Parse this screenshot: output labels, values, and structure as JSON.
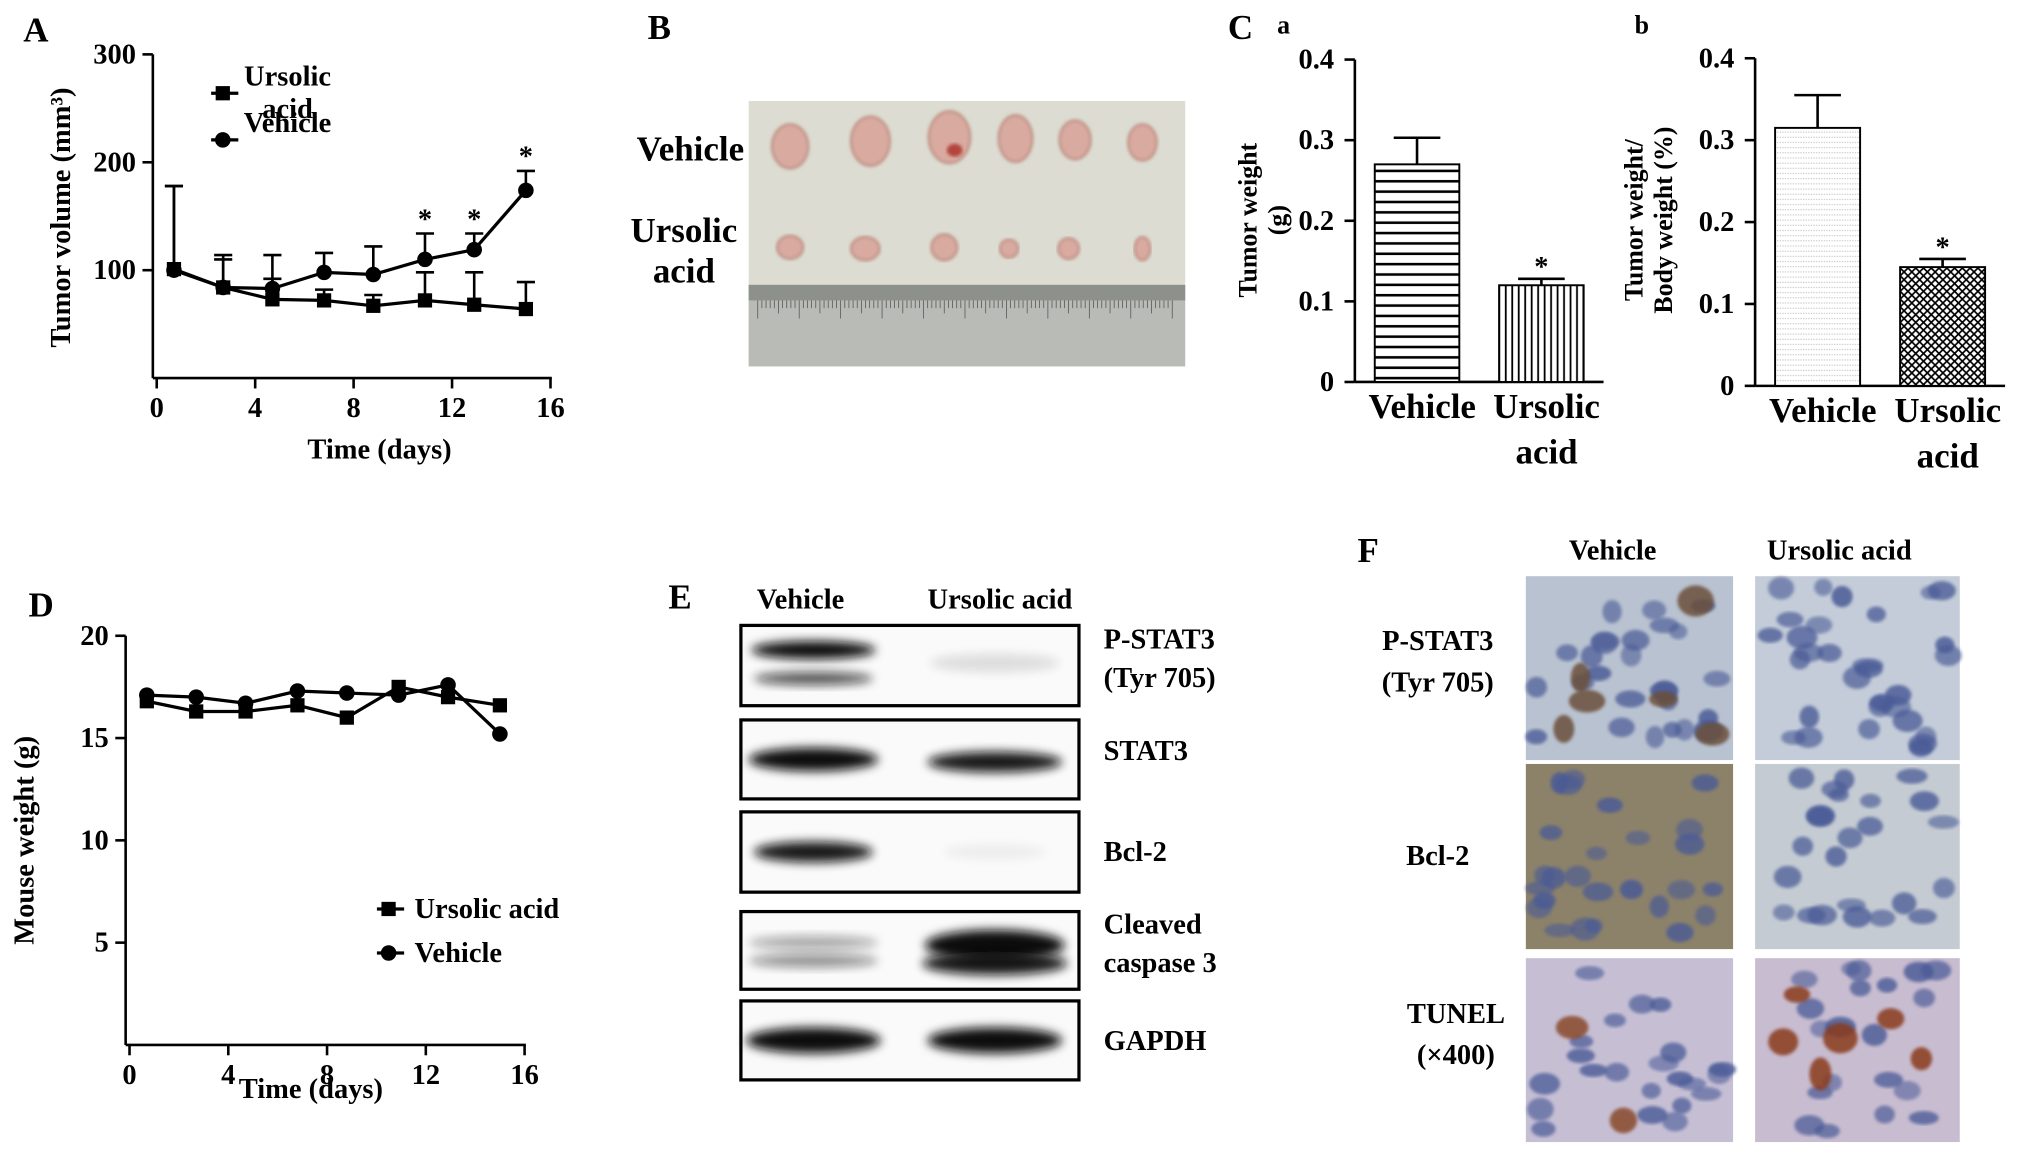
{
  "chart_data": [
    {
      "type": "line",
      "panel_label": "A",
      "x_label": "Time (days)",
      "y_label": "Tumor volume (mm³)",
      "x": [
        0.7,
        2.7,
        4.7,
        6.8,
        8.8,
        10.9,
        12.9,
        15
      ],
      "xlim": [
        0,
        16
      ],
      "xticks": [
        0,
        4,
        8,
        12,
        16
      ],
      "ylim": [
        0,
        300
      ],
      "yticks": [
        100,
        200,
        300
      ],
      "legend": "upper left",
      "series": [
        {
          "name": "Ursolic acid",
          "color": "#000000",
          "marker": "square",
          "values": [
            101,
            84,
            73,
            72,
            67,
            72,
            68,
            64
          ],
          "errors": [
            77,
            26,
            19,
            10,
            10,
            26,
            30,
            25
          ]
        },
        {
          "name": "Vehicle",
          "color": "#000000",
          "marker": "circle",
          "values": [
            100,
            84,
            83,
            98,
            96,
            110,
            119,
            174
          ],
          "errors": [
            78,
            30,
            31,
            18,
            26,
            24,
            15,
            18
          ],
          "significance": [
            null,
            null,
            null,
            null,
            null,
            "*",
            "*",
            "*"
          ]
        }
      ]
    },
    {
      "type": "bar",
      "panel_label": "C",
      "sub_label": "a",
      "y_label": "Tumor weight (g)",
      "categories": [
        "Vehicle",
        "Ursolic acid"
      ],
      "values": [
        0.27,
        0.12
      ],
      "errors": [
        0.033,
        0.008
      ],
      "significance": [
        null,
        "*"
      ],
      "color": "#000000",
      "bar_patterns": [
        "horizontal",
        "vertical"
      ],
      "ylim": [
        0,
        0.4
      ],
      "yticks": [
        0,
        0.1,
        0.2,
        0.3,
        0.4
      ]
    },
    {
      "type": "bar",
      "sub_label": "b",
      "y_label": "Tumor weight/ Body weight (%)",
      "categories": [
        "Vehicle",
        "Ursolic acid"
      ],
      "values": [
        0.315,
        0.145
      ],
      "errors": [
        0.04,
        0.01
      ],
      "significance": [
        null,
        "*"
      ],
      "color": "#000000",
      "bar_patterns": [
        "dots",
        "cross"
      ],
      "ylim": [
        0,
        0.4
      ],
      "yticks": [
        0,
        0.1,
        0.2,
        0.3,
        0.4
      ]
    },
    {
      "type": "line",
      "panel_label": "D",
      "x_label": "Time (days)",
      "y_label": "Mouse weight (g)",
      "x": [
        0.7,
        2.7,
        4.7,
        6.8,
        8.8,
        10.9,
        12.9,
        15
      ],
      "xlim": [
        0,
        16
      ],
      "xticks": [
        0,
        4,
        8,
        12,
        16
      ],
      "ylim": [
        0,
        20
      ],
      "yticks": [
        5,
        10,
        15,
        20
      ],
      "legend": "lower right",
      "series": [
        {
          "name": "Ursolic acid",
          "color": "#000000",
          "marker": "square",
          "values": [
            16.8,
            16.3,
            16.3,
            16.6,
            16.0,
            17.5,
            17.0,
            16.6
          ]
        },
        {
          "name": "Vehicle",
          "color": "#000000",
          "marker": "circle",
          "values": [
            17.1,
            17.0,
            16.7,
            17.3,
            17.2,
            17.1,
            17.6,
            15.2
          ]
        }
      ]
    }
  ],
  "photo": {
    "panel_label": "B",
    "rows": [
      "Vehicle",
      "Ursolic acid"
    ]
  },
  "western_blot": {
    "panel_label": "E",
    "columns": [
      "Vehicle",
      "Ursolic acid"
    ],
    "rows": [
      "P-STAT3 (Tyr 705)",
      "STAT3",
      "Bcl-2",
      "Cleaved caspase 3",
      "GAPDH"
    ]
  },
  "histology": {
    "panel_label": "F",
    "columns": [
      "Vehicle",
      "Ursolic acid"
    ],
    "rows": [
      "P-STAT3 (Tyr 705)",
      "Bcl-2",
      "TUNEL (×400)"
    ]
  }
}
